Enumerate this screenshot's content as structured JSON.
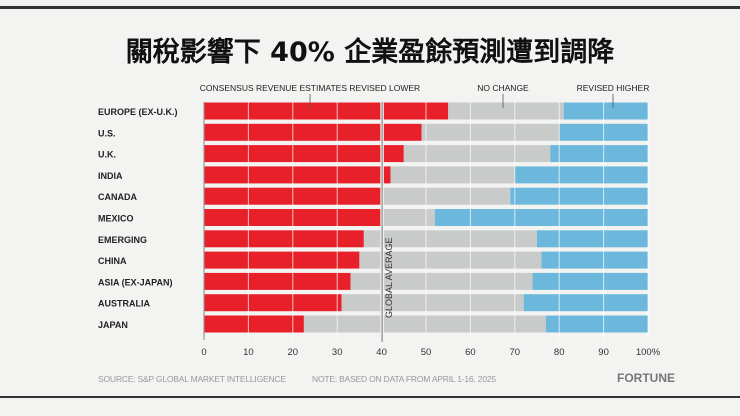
{
  "title": "關稅影響下 40% 企業盈餘預測遭到調降",
  "source": "SOURCE: S&P GLOBAL MARKET INTELLIGENCE",
  "note": "NOTE: BASED ON DATA FROM APRIL 1-16, 2025",
  "brand": "FORTUNE",
  "colors": {
    "lower": "#e8202a",
    "no_change": "#c9caca",
    "higher": "#6cb8dc"
  },
  "chart_data": {
    "type": "bar",
    "stacked": true,
    "orientation": "horizontal",
    "categories": [
      "EUROPE (EX-U.K.)",
      "U.S.",
      "U.K.",
      "INDIA",
      "CANADA",
      "MEXICO",
      "EMERGING",
      "CHINA",
      "ASIA (EX-JAPAN)",
      "AUSTRALIA",
      "JAPAN"
    ],
    "series": [
      {
        "name": "CONSENSUS REVENUE ESTIMATES REVISED LOWER",
        "values": [
          55,
          49,
          45,
          42,
          40,
          40,
          36,
          35,
          33,
          31,
          22.5
        ]
      },
      {
        "name": "NO CHANGE",
        "values": [
          26,
          31,
          33,
          28,
          29,
          12,
          39,
          41,
          41,
          41,
          54.5
        ]
      },
      {
        "name": "REVISED HIGHER",
        "values": [
          19,
          20,
          22,
          30,
          31,
          48,
          25,
          24,
          26,
          28,
          23
        ]
      }
    ],
    "xlim": [
      0,
      100
    ],
    "xticks": [
      "0",
      "10",
      "20",
      "30",
      "40",
      "50",
      "60",
      "70",
      "80",
      "90",
      "100%"
    ],
    "reference_line": {
      "value": 40,
      "label": "GLOBAL AVERAGE"
    },
    "grid": true
  }
}
